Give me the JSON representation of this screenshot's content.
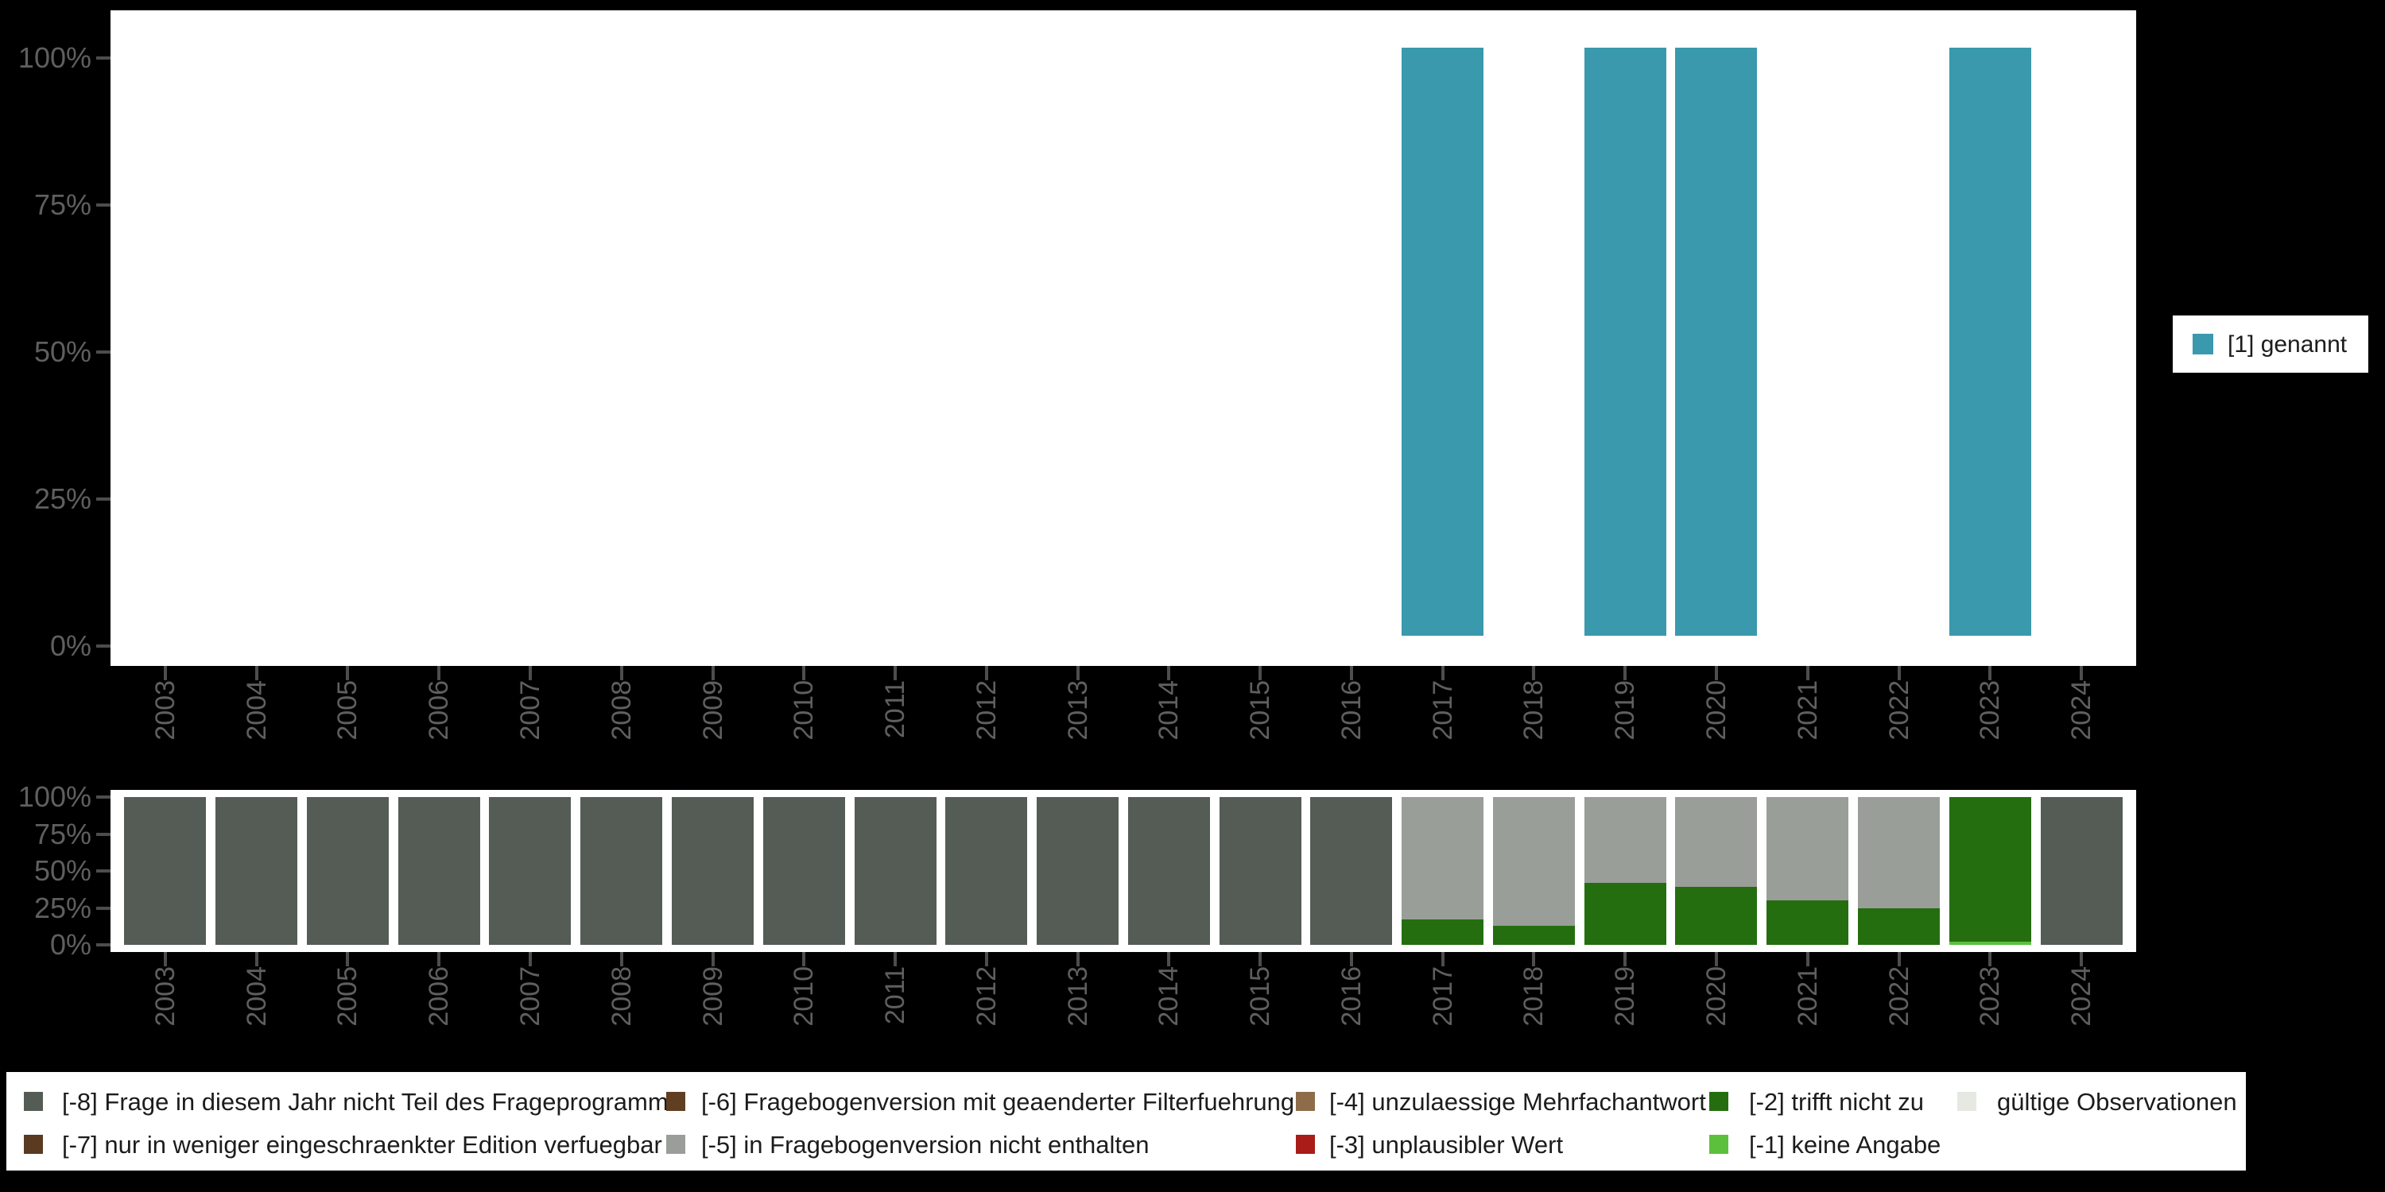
{
  "colors": {
    "genannt": "#3a99ad",
    "-8": "#555c55",
    "-7": "#5a3a20",
    "-6": "#5f3e21",
    "-5": "#9a9e99",
    "-4": "#8e6c49",
    "-3": "#a81d17",
    "-2": "#256e10",
    "-1": "#5dc03c",
    "valid": "#e6e8e2"
  },
  "axis": {
    "y_tick_labels": [
      "100%",
      "75%",
      "50%",
      "25%",
      "0%"
    ],
    "years": [
      "2003",
      "2004",
      "2005",
      "2006",
      "2007",
      "2008",
      "2009",
      "2010",
      "2011",
      "2012",
      "2013",
      "2014",
      "2015",
      "2016",
      "2017",
      "2018",
      "2019",
      "2020",
      "2021",
      "2022",
      "2023",
      "2024"
    ]
  },
  "top_legend": {
    "label": "[1] genannt",
    "color_key": "genannt"
  },
  "chart_data": [
    {
      "type": "bar",
      "name": "value-distribution-by-year",
      "unit": "percent",
      "ylim": [
        0,
        100
      ],
      "grid": false,
      "legend_position": "right",
      "categories": [
        "2003",
        "2004",
        "2005",
        "2006",
        "2007",
        "2008",
        "2009",
        "2010",
        "2011",
        "2012",
        "2013",
        "2014",
        "2015",
        "2016",
        "2017",
        "2018",
        "2019",
        "2020",
        "2021",
        "2022",
        "2023",
        "2024"
      ],
      "series": [
        {
          "name": "[1] genannt",
          "color_key": "genannt",
          "values": [
            null,
            null,
            null,
            null,
            null,
            null,
            null,
            null,
            null,
            null,
            null,
            null,
            null,
            null,
            100,
            null,
            100,
            100,
            null,
            null,
            100,
            null
          ]
        }
      ]
    },
    {
      "type": "bar",
      "name": "missing-values-distribution-by-year",
      "unit": "percent",
      "ylim": [
        0,
        100
      ],
      "stacked": true,
      "grid": false,
      "legend_position": "bottom",
      "categories": [
        "2003",
        "2004",
        "2005",
        "2006",
        "2007",
        "2008",
        "2009",
        "2010",
        "2011",
        "2012",
        "2013",
        "2014",
        "2015",
        "2016",
        "2017",
        "2018",
        "2019",
        "2020",
        "2021",
        "2022",
        "2023",
        "2024"
      ],
      "stacks": [
        {
          "year": "2003",
          "stack": [
            {
              "code": "-8",
              "pct": 100
            }
          ]
        },
        {
          "year": "2004",
          "stack": [
            {
              "code": "-8",
              "pct": 100
            }
          ]
        },
        {
          "year": "2005",
          "stack": [
            {
              "code": "-8",
              "pct": 100
            }
          ]
        },
        {
          "year": "2006",
          "stack": [
            {
              "code": "-8",
              "pct": 100
            }
          ]
        },
        {
          "year": "2007",
          "stack": [
            {
              "code": "-8",
              "pct": 100
            }
          ]
        },
        {
          "year": "2008",
          "stack": [
            {
              "code": "-8",
              "pct": 100
            }
          ]
        },
        {
          "year": "2009",
          "stack": [
            {
              "code": "-8",
              "pct": 100
            }
          ]
        },
        {
          "year": "2010",
          "stack": [
            {
              "code": "-8",
              "pct": 100
            }
          ]
        },
        {
          "year": "2011",
          "stack": [
            {
              "code": "-8",
              "pct": 100
            }
          ]
        },
        {
          "year": "2012",
          "stack": [
            {
              "code": "-8",
              "pct": 100
            }
          ]
        },
        {
          "year": "2013",
          "stack": [
            {
              "code": "-8",
              "pct": 100
            }
          ]
        },
        {
          "year": "2014",
          "stack": [
            {
              "code": "-8",
              "pct": 100
            }
          ]
        },
        {
          "year": "2015",
          "stack": [
            {
              "code": "-8",
              "pct": 100
            }
          ]
        },
        {
          "year": "2016",
          "stack": [
            {
              "code": "-8",
              "pct": 100
            }
          ]
        },
        {
          "year": "2017",
          "stack": [
            {
              "code": "-2",
              "pct": 17
            },
            {
              "code": "-5",
              "pct": 83
            }
          ]
        },
        {
          "year": "2018",
          "stack": [
            {
              "code": "-2",
              "pct": 13
            },
            {
              "code": "-5",
              "pct": 87
            }
          ]
        },
        {
          "year": "2019",
          "stack": [
            {
              "code": "-2",
              "pct": 42
            },
            {
              "code": "-5",
              "pct": 58
            }
          ]
        },
        {
          "year": "2020",
          "stack": [
            {
              "code": "-2",
              "pct": 39
            },
            {
              "code": "-5",
              "pct": 61
            }
          ]
        },
        {
          "year": "2021",
          "stack": [
            {
              "code": "-2",
              "pct": 30
            },
            {
              "code": "-5",
              "pct": 70
            }
          ]
        },
        {
          "year": "2022",
          "stack": [
            {
              "code": "-2",
              "pct": 25
            },
            {
              "code": "-5",
              "pct": 75
            }
          ]
        },
        {
          "year": "2023",
          "stack": [
            {
              "code": "-1",
              "pct": 2
            },
            {
              "code": "-2",
              "pct": 98
            }
          ]
        },
        {
          "year": "2024",
          "stack": [
            {
              "code": "-8",
              "pct": 100
            }
          ]
        }
      ]
    }
  ],
  "bottom_legend": {
    "columns": [
      {
        "items": [
          {
            "code": "-8",
            "label": "[-8] Frage in diesem Jahr nicht Teil des Frageprogramms"
          },
          {
            "code": "-7",
            "label": "[-7] nur in weniger eingeschraenkter Edition verfuegbar"
          }
        ]
      },
      {
        "items": [
          {
            "code": "-6",
            "label": "[-6] Fragebogenversion mit geaenderter Filterfuehrung"
          },
          {
            "code": "-5",
            "label": "[-5] in Fragebogenversion nicht enthalten"
          }
        ]
      },
      {
        "items": [
          {
            "code": "-4",
            "label": "[-4] unzulaessige Mehrfachantwort"
          },
          {
            "code": "-3",
            "label": "[-3] unplausibler Wert"
          }
        ]
      },
      {
        "items": [
          {
            "code": "-2",
            "label": "[-2] trifft nicht zu"
          },
          {
            "code": "-1",
            "label": "[-1] keine Angabe"
          }
        ]
      },
      {
        "items": [
          {
            "code": "valid",
            "label": "gültige Observationen"
          }
        ]
      }
    ]
  }
}
